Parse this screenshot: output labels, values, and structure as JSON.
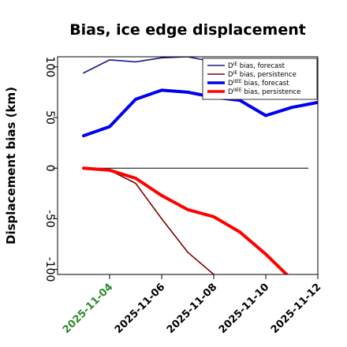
{
  "chart_data": {
    "type": "line",
    "title": "Bias, ice edge displacement",
    "ylabel": "Displacement bias (km)",
    "xlabel": "",
    "ylim": [
      -105,
      110
    ],
    "xlim": [
      "2025-11-02",
      "2025-11-12"
    ],
    "grid": false,
    "legend_position": "top-right",
    "zero_line": true,
    "x_ticks": [
      "2025-11-04",
      "2025-11-06",
      "2025-11-08",
      "2025-11-10",
      "2025-11-12"
    ],
    "x_tick_colors": [
      "#2a8a2a",
      "#000000",
      "#000000",
      "#000000",
      "#000000"
    ],
    "y_ticks": [
      -100,
      -50,
      0,
      50,
      100
    ],
    "series": [
      {
        "name": "D^IE bias, forecast",
        "name_base": "D",
        "name_sup": "IE",
        "name_rest": " bias, forecast",
        "color": "#1a1a8c",
        "width": "thin",
        "x": [
          "2025-11-03",
          "2025-11-04",
          "2025-11-05",
          "2025-11-06",
          "2025-11-07",
          "2025-11-08"
        ],
        "y": [
          94,
          107,
          105,
          109,
          110,
          105
        ]
      },
      {
        "name": "D^IE bias, persistence",
        "name_base": "D",
        "name_sup": "IE",
        "name_rest": " bias, persistence",
        "color": "#7f0000",
        "width": "thin",
        "x": [
          "2025-11-03",
          "2025-11-04",
          "2025-11-05",
          "2025-11-06",
          "2025-11-07",
          "2025-11-08"
        ],
        "y": [
          0,
          -2,
          -15,
          -50,
          -83,
          -105
        ]
      },
      {
        "name": "D^IIEE bias, forecast",
        "name_base": "D",
        "name_sup": "IIEE",
        "name_rest": " bias, forecast",
        "color": "#0000ee",
        "width": "thick",
        "x": [
          "2025-11-03",
          "2025-11-04",
          "2025-11-05",
          "2025-11-06",
          "2025-11-07",
          "2025-11-08",
          "2025-11-09",
          "2025-11-10",
          "2025-11-11",
          "2025-11-12"
        ],
        "y": [
          32,
          41,
          68,
          77,
          75,
          70,
          67,
          52,
          60,
          65
        ]
      },
      {
        "name": "D^IIEE bias, persistence",
        "name_base": "D",
        "name_sup": "IIEE",
        "name_rest": " bias, persistence",
        "color": "#ff0000",
        "width": "thick",
        "x": [
          "2025-11-03",
          "2025-11-04",
          "2025-11-05",
          "2025-11-06",
          "2025-11-07",
          "2025-11-08",
          "2025-11-09",
          "2025-11-10",
          "2025-11-11"
        ],
        "y": [
          0,
          -2,
          -10,
          -27,
          -41,
          -48,
          -63,
          -85,
          -110
        ]
      }
    ]
  }
}
